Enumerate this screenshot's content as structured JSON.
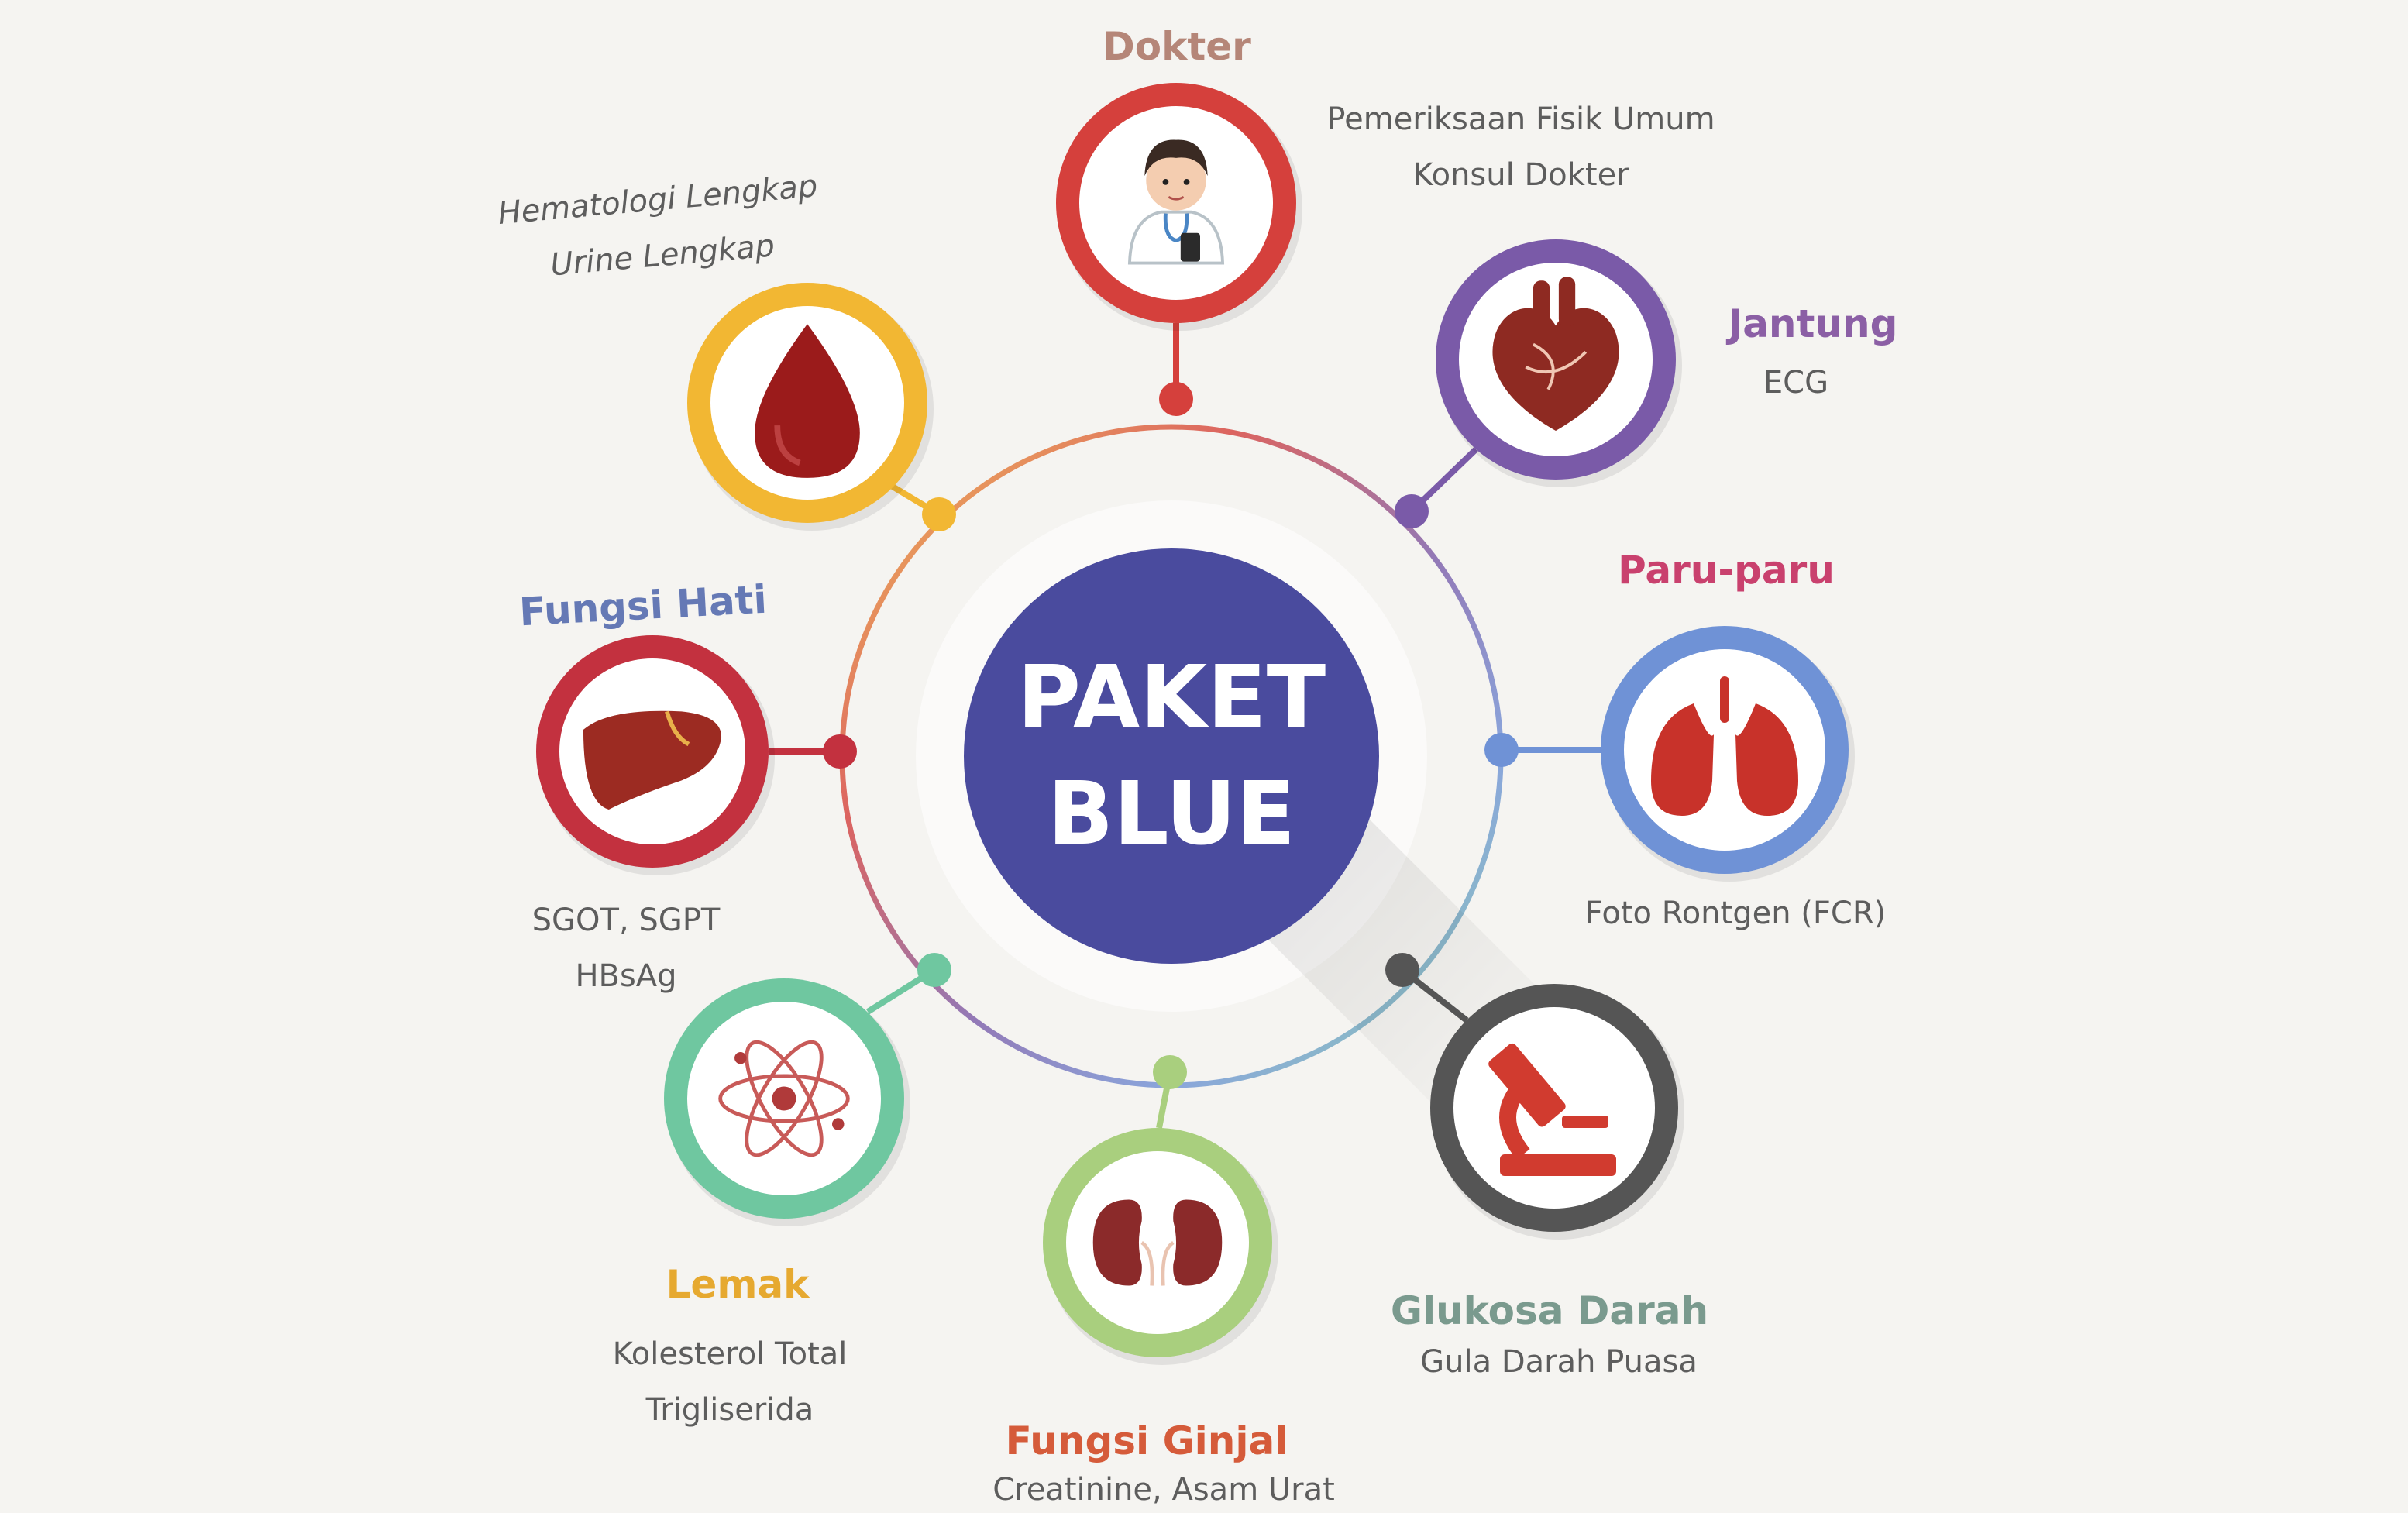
{
  "center": {
    "line1": "PAKET",
    "line2": "BLUE",
    "color": "#4a4b9e"
  },
  "nodes": [
    {
      "id": "dokter",
      "icon": "doctor-icon",
      "color": "#d5403c",
      "title": "Dokter",
      "title_color": "#b58678",
      "lines": [
        "Pemeriksaan Fisik Umum",
        "Konsul Dokter"
      ]
    },
    {
      "id": "jantung",
      "icon": "heart-icon",
      "color": "#7a5aa8",
      "title": "Jantung",
      "title_color": "#8b5fa5",
      "lines": [
        "ECG"
      ]
    },
    {
      "id": "paru-paru",
      "icon": "lungs-icon",
      "color": "#6f92d6",
      "title": "Paru-paru",
      "title_color": "#c9416e",
      "lines": [
        "Foto Rontgen (FCR)"
      ]
    },
    {
      "id": "glukosa-darah",
      "icon": "microscope-icon",
      "color": "#555555",
      "title": "Glukosa Darah",
      "title_color": "#7a9a8e",
      "lines": [
        "Gula Darah Puasa"
      ]
    },
    {
      "id": "fungsi-ginjal",
      "icon": "kidneys-icon",
      "color": "#a9cf7e",
      "title": "Fungsi Ginjal",
      "title_color": "#d55b3a",
      "lines": [
        "Creatinine, Asam Urat"
      ]
    },
    {
      "id": "lemak",
      "icon": "atom-icon",
      "color": "#6fc7a0",
      "title": "Lemak",
      "title_color": "#e6a930",
      "lines": [
        "Kolesterol Total",
        "Trigliserida"
      ]
    },
    {
      "id": "fungsi-hati",
      "icon": "liver-icon",
      "color": "#c3313f",
      "title": "Fungsi Hati",
      "title_color": "#6579b5",
      "lines": [
        "SGOT, SGPT",
        "HBsAg"
      ]
    },
    {
      "id": "darah",
      "icon": "blood-drop-icon",
      "color": "#f2b733",
      "title": "",
      "title_color": "#f2b733",
      "lines": [
        "Hematologi Lengkap",
        "Urine Lengkap"
      ]
    }
  ]
}
